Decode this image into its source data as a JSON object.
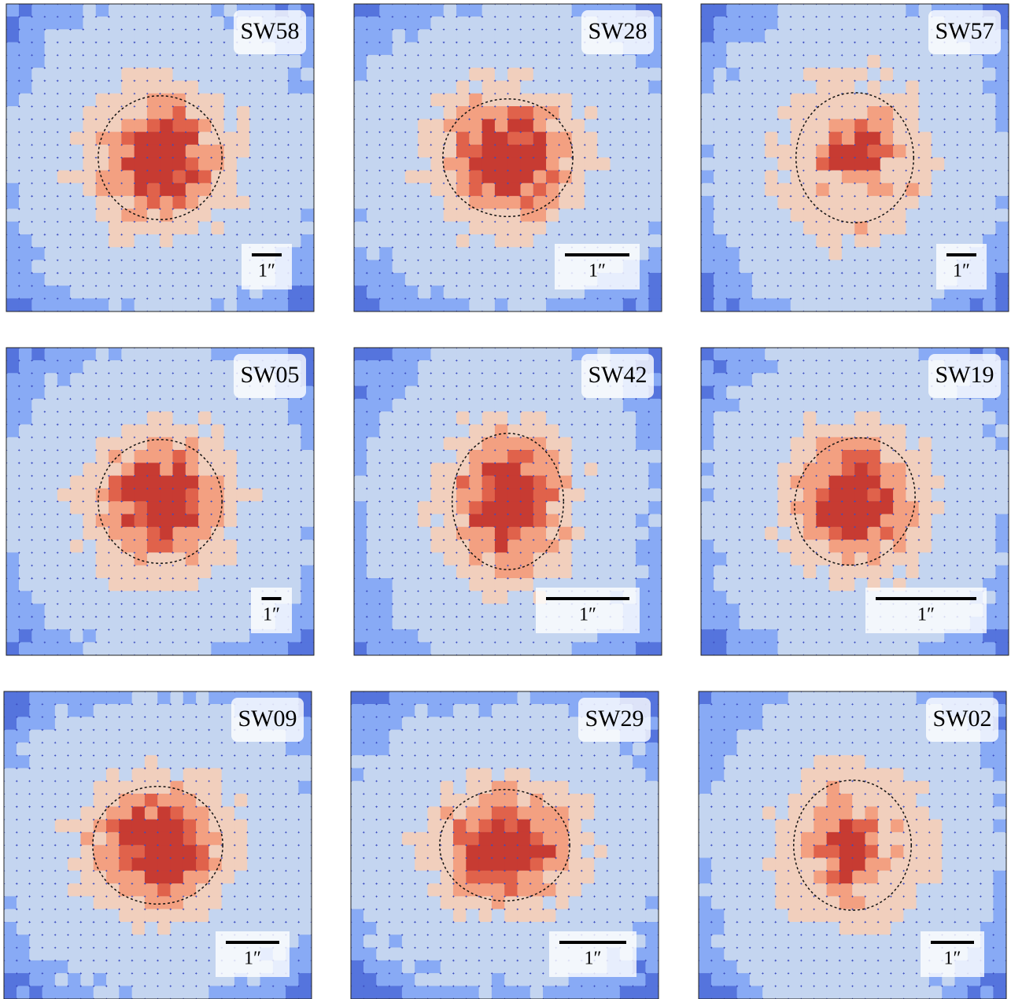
{
  "panels": [
    {
      "label": "SW58",
      "scale_label": "1″"
    },
    {
      "label": "SW28",
      "scale_label": "1″"
    },
    {
      "label": "SW57",
      "scale_label": "1″"
    },
    {
      "label": "SW05",
      "scale_label": "1″"
    },
    {
      "label": "SW42",
      "scale_label": "1″"
    },
    {
      "label": "SW19",
      "scale_label": "1″"
    },
    {
      "label": "SW09",
      "scale_label": "1″"
    },
    {
      "label": "SW29",
      "scale_label": "1″"
    },
    {
      "label": "SW02",
      "scale_label": "1″"
    }
  ]
}
